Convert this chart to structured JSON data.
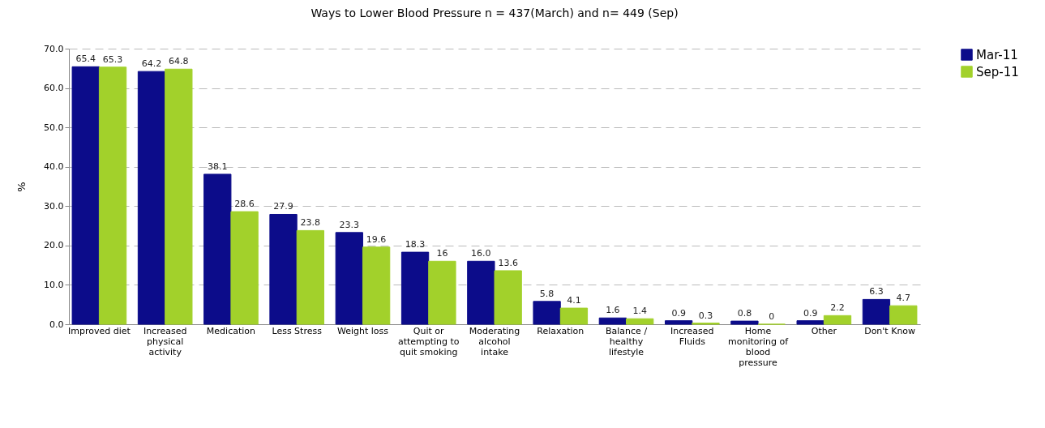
{
  "chart_data": {
    "type": "bar",
    "title": "Ways to Lower Blood Pressure n = 437(March) and n= 449 (Sep)",
    "ylabel": "%",
    "categories": [
      "Improved diet",
      "Increased physical activity",
      "Medication",
      "Less Stress",
      "Weight loss",
      "Quit or attempting to quit smoking",
      "Moderating alcohol intake",
      "Relaxation",
      "Balance / healthy lifestyle",
      "Increased Fluids",
      "Home monitoring of blood pressure",
      "Other",
      "Don't Know"
    ],
    "series": [
      {
        "name": "Mar-11",
        "color": "#0c0c8a",
        "values": [
          65.4,
          64.2,
          38.1,
          27.9,
          23.3,
          18.3,
          16.0,
          5.8,
          1.6,
          0.9,
          0.8,
          0.9,
          6.3
        ],
        "value_labels": [
          "65.4",
          "64.2",
          "38.1",
          "27.9",
          "23.3",
          "18.3",
          "16.0",
          "5.8",
          "1.6",
          "0.9",
          "0.8",
          "0.9",
          "6.3"
        ]
      },
      {
        "name": "Sep-11",
        "color": "#a2d12b",
        "values": [
          65.3,
          64.8,
          28.6,
          23.8,
          19.6,
          16,
          13.6,
          4.1,
          1.4,
          0.3,
          0,
          2.2,
          4.7
        ],
        "value_labels": [
          "65.3",
          "64.8",
          "28.6",
          "23.8",
          "19.6",
          "16",
          "13.6",
          "4.1",
          "1.4",
          "0.3",
          "0",
          "2.2",
          "4.7"
        ]
      }
    ],
    "ylim": [
      0,
      70
    ],
    "yticks": [
      {
        "value": 0,
        "label": "0.0"
      },
      {
        "value": 10,
        "label": "10.0"
      },
      {
        "value": 20,
        "label": "20.0"
      },
      {
        "value": 30,
        "label": "30.0"
      },
      {
        "value": 40,
        "label": "40.0"
      },
      {
        "value": 50,
        "label": "50.0"
      },
      {
        "value": 60,
        "label": "60.0"
      },
      {
        "value": 70,
        "label": "70.0"
      }
    ],
    "grid": "y",
    "legend": "right"
  }
}
